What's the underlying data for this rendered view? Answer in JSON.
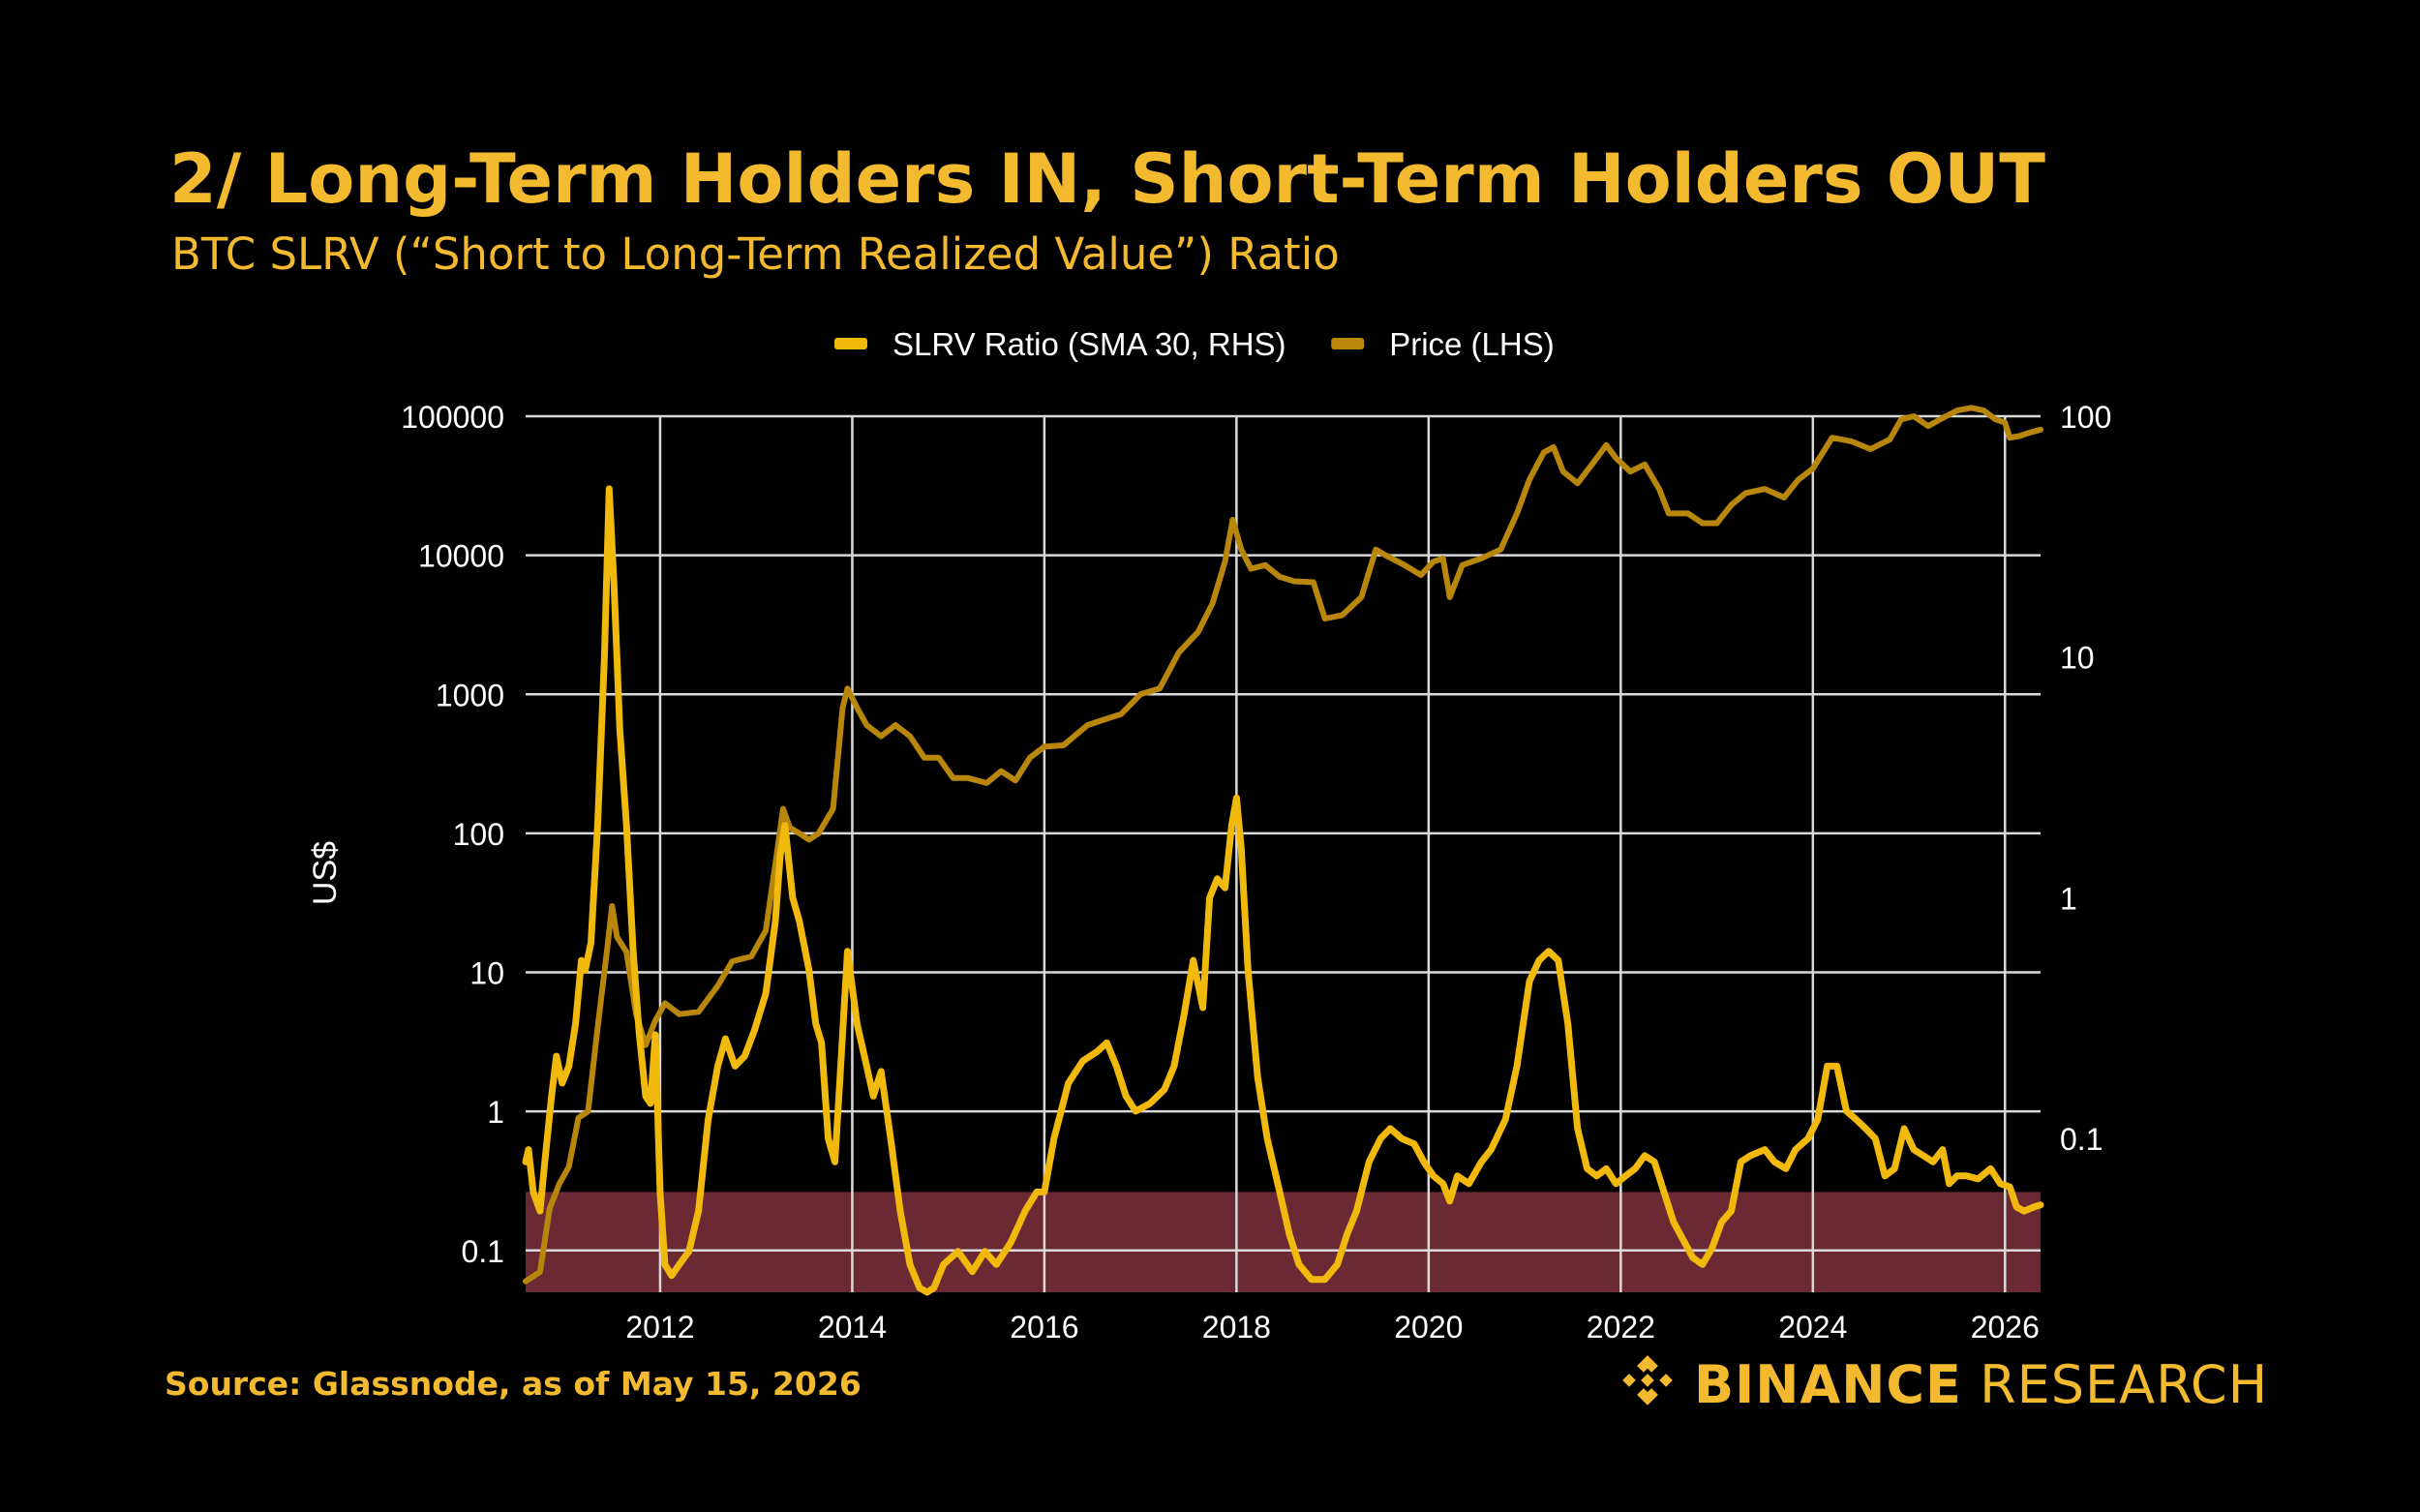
{
  "header": {
    "title": "2/ Long-Term Holders IN, Short-Term Holders OUT",
    "subtitle": "BTC SLRV (“Short to Long-Term Realized Value”) Ratio"
  },
  "footer": {
    "source": "Source: Glassnode, as of May 15, 2026",
    "brand_name": "BINANCE",
    "brand_suffix": " RESEARCH"
  },
  "colors": {
    "background": "#000000",
    "brand_yellow": "#F3BA2F",
    "slrv_line": "#F0B90B",
    "price_line": "#B8860B",
    "low_zone_fill": "#6B2A33",
    "grid": "#D9D9D9",
    "text": "#FFFFFF"
  },
  "chart_data": {
    "type": "line",
    "title": "",
    "legend_position": "top-center",
    "grid": true,
    "xlabel": "",
    "ylabel": "US$",
    "y_left_scale": "log",
    "y_right_scale": "log",
    "xlim": [
      2010.6,
      2026.37
    ],
    "ylim_left": [
      0.05,
      100000
    ],
    "ylim_right": [
      0.023,
      100
    ],
    "x_ticks": [
      2012,
      2014,
      2016,
      2018,
      2020,
      2022,
      2024,
      2026
    ],
    "x_tick_labels": [
      "2012",
      "2014",
      "2016",
      "2018",
      "2020",
      "2022",
      "2024",
      "2026"
    ],
    "y_left_ticks": [
      0.1,
      1,
      10,
      100,
      1000,
      10000,
      100000
    ],
    "y_left_tick_labels": [
      "0.1",
      "1",
      "10",
      "100",
      "1000",
      "10000",
      "100000"
    ],
    "y_right_ticks": [
      0.1,
      1,
      10,
      100
    ],
    "y_right_tick_labels": [
      "0.1",
      "1",
      "10",
      "100"
    ],
    "highlight_band": {
      "axis": "right",
      "from": 0.023,
      "to": 0.06
    },
    "series": [
      {
        "name": "SLRV Ratio (SMA 30, RHS)",
        "axis": "right",
        "color": "#F0B90B",
        "points": [
          [
            2010.6,
            0.08
          ],
          [
            2010.63,
            0.09
          ],
          [
            2010.68,
            0.06
          ],
          [
            2010.75,
            0.05
          ],
          [
            2010.8,
            0.08
          ],
          [
            2010.87,
            0.15
          ],
          [
            2010.92,
            0.22
          ],
          [
            2010.98,
            0.17
          ],
          [
            2011.05,
            0.2
          ],
          [
            2011.12,
            0.3
          ],
          [
            2011.18,
            0.55
          ],
          [
            2011.22,
            0.5
          ],
          [
            2011.28,
            0.65
          ],
          [
            2011.35,
            2.0
          ],
          [
            2011.42,
            10.0
          ],
          [
            2011.47,
            50.0
          ],
          [
            2011.52,
            20.0
          ],
          [
            2011.58,
            5.0
          ],
          [
            2011.65,
            2.0
          ],
          [
            2011.72,
            0.6
          ],
          [
            2011.78,
            0.28
          ],
          [
            2011.85,
            0.15
          ],
          [
            2011.9,
            0.14
          ],
          [
            2011.95,
            0.27
          ],
          [
            2012.0,
            0.06
          ],
          [
            2012.05,
            0.03
          ],
          [
            2012.12,
            0.027
          ],
          [
            2012.2,
            0.03
          ],
          [
            2012.3,
            0.034
          ],
          [
            2012.4,
            0.05
          ],
          [
            2012.5,
            0.12
          ],
          [
            2012.6,
            0.2
          ],
          [
            2012.68,
            0.26
          ],
          [
            2012.78,
            0.2
          ],
          [
            2012.88,
            0.22
          ],
          [
            2012.98,
            0.28
          ],
          [
            2013.1,
            0.4
          ],
          [
            2013.2,
            0.8
          ],
          [
            2013.25,
            1.5
          ],
          [
            2013.3,
            2.0
          ],
          [
            2013.38,
            1.0
          ],
          [
            2013.45,
            0.8
          ],
          [
            2013.55,
            0.5
          ],
          [
            2013.62,
            0.3
          ],
          [
            2013.68,
            0.25
          ],
          [
            2013.75,
            0.1
          ],
          [
            2013.82,
            0.08
          ],
          [
            2013.88,
            0.2
          ],
          [
            2013.95,
            0.6
          ],
          [
            2014.05,
            0.3
          ],
          [
            2014.15,
            0.2
          ],
          [
            2014.22,
            0.15
          ],
          [
            2014.3,
            0.19
          ],
          [
            2014.4,
            0.1
          ],
          [
            2014.5,
            0.05
          ],
          [
            2014.6,
            0.03
          ],
          [
            2014.7,
            0.024
          ],
          [
            2014.78,
            0.023
          ],
          [
            2014.85,
            0.024
          ],
          [
            2014.95,
            0.03
          ],
          [
            2015.1,
            0.034
          ],
          [
            2015.25,
            0.028
          ],
          [
            2015.38,
            0.034
          ],
          [
            2015.5,
            0.03
          ],
          [
            2015.65,
            0.037
          ],
          [
            2015.8,
            0.05
          ],
          [
            2015.92,
            0.06
          ],
          [
            2016.0,
            0.06
          ],
          [
            2016.1,
            0.1
          ],
          [
            2016.25,
            0.17
          ],
          [
            2016.4,
            0.21
          ],
          [
            2016.55,
            0.23
          ],
          [
            2016.65,
            0.25
          ],
          [
            2016.75,
            0.2
          ],
          [
            2016.85,
            0.15
          ],
          [
            2016.95,
            0.13
          ],
          [
            2017.1,
            0.14
          ],
          [
            2017.25,
            0.16
          ],
          [
            2017.35,
            0.2
          ],
          [
            2017.45,
            0.32
          ],
          [
            2017.55,
            0.55
          ],
          [
            2017.65,
            0.35
          ],
          [
            2017.72,
            1.0
          ],
          [
            2017.8,
            1.2
          ],
          [
            2017.88,
            1.1
          ],
          [
            2017.95,
            2.0
          ],
          [
            2018.0,
            2.6
          ],
          [
            2018.05,
            1.6
          ],
          [
            2018.12,
            0.5
          ],
          [
            2018.22,
            0.18
          ],
          [
            2018.32,
            0.1
          ],
          [
            2018.45,
            0.06
          ],
          [
            2018.55,
            0.04
          ],
          [
            2018.65,
            0.03
          ],
          [
            2018.78,
            0.026
          ],
          [
            2018.92,
            0.026
          ],
          [
            2019.05,
            0.03
          ],
          [
            2019.15,
            0.04
          ],
          [
            2019.25,
            0.05
          ],
          [
            2019.38,
            0.08
          ],
          [
            2019.5,
            0.1
          ],
          [
            2019.6,
            0.11
          ],
          [
            2019.72,
            0.1
          ],
          [
            2019.85,
            0.095
          ],
          [
            2019.95,
            0.08
          ],
          [
            2020.05,
            0.07
          ],
          [
            2020.15,
            0.065
          ],
          [
            2020.22,
            0.055
          ],
          [
            2020.3,
            0.07
          ],
          [
            2020.42,
            0.065
          ],
          [
            2020.55,
            0.08
          ],
          [
            2020.65,
            0.09
          ],
          [
            2020.8,
            0.12
          ],
          [
            2020.92,
            0.2
          ],
          [
            2021.05,
            0.45
          ],
          [
            2021.15,
            0.55
          ],
          [
            2021.25,
            0.6
          ],
          [
            2021.35,
            0.55
          ],
          [
            2021.45,
            0.3
          ],
          [
            2021.55,
            0.11
          ],
          [
            2021.65,
            0.075
          ],
          [
            2021.75,
            0.07
          ],
          [
            2021.85,
            0.075
          ],
          [
            2021.95,
            0.065
          ],
          [
            2022.05,
            0.07
          ],
          [
            2022.15,
            0.075
          ],
          [
            2022.25,
            0.085
          ],
          [
            2022.35,
            0.08
          ],
          [
            2022.45,
            0.06
          ],
          [
            2022.55,
            0.045
          ],
          [
            2022.65,
            0.038
          ],
          [
            2022.75,
            0.032
          ],
          [
            2022.85,
            0.03
          ],
          [
            2022.95,
            0.035
          ],
          [
            2023.05,
            0.045
          ],
          [
            2023.15,
            0.05
          ],
          [
            2023.25,
            0.08
          ],
          [
            2023.35,
            0.085
          ],
          [
            2023.5,
            0.09
          ],
          [
            2023.6,
            0.08
          ],
          [
            2023.72,
            0.075
          ],
          [
            2023.82,
            0.09
          ],
          [
            2023.95,
            0.1
          ],
          [
            2024.05,
            0.12
          ],
          [
            2024.15,
            0.2
          ],
          [
            2024.25,
            0.2
          ],
          [
            2024.35,
            0.13
          ],
          [
            2024.45,
            0.12
          ],
          [
            2024.55,
            0.11
          ],
          [
            2024.65,
            0.1
          ],
          [
            2024.75,
            0.07
          ],
          [
            2024.85,
            0.075
          ],
          [
            2024.95,
            0.11
          ],
          [
            2025.05,
            0.09
          ],
          [
            2025.15,
            0.085
          ],
          [
            2025.25,
            0.08
          ],
          [
            2025.35,
            0.09
          ],
          [
            2025.42,
            0.065
          ],
          [
            2025.5,
            0.07
          ],
          [
            2025.6,
            0.07
          ],
          [
            2025.72,
            0.068
          ],
          [
            2025.85,
            0.075
          ],
          [
            2025.95,
            0.065
          ],
          [
            2026.05,
            0.063
          ],
          [
            2026.12,
            0.052
          ],
          [
            2026.2,
            0.05
          ],
          [
            2026.3,
            0.052
          ],
          [
            2026.37,
            0.053
          ]
        ]
      },
      {
        "name": "Price (LHS)",
        "axis": "left",
        "color": "#B8860B",
        "points": [
          [
            2010.6,
            0.06
          ],
          [
            2010.75,
            0.07
          ],
          [
            2010.85,
            0.2
          ],
          [
            2010.95,
            0.3
          ],
          [
            2011.05,
            0.4
          ],
          [
            2011.15,
            0.9
          ],
          [
            2011.25,
            1.0
          ],
          [
            2011.35,
            4.0
          ],
          [
            2011.45,
            15.0
          ],
          [
            2011.5,
            30.0
          ],
          [
            2011.55,
            18.0
          ],
          [
            2011.65,
            14.0
          ],
          [
            2011.75,
            5.0
          ],
          [
            2011.85,
            3.0
          ],
          [
            2011.95,
            4.5
          ],
          [
            2012.05,
            6.0
          ],
          [
            2012.2,
            5.0
          ],
          [
            2012.4,
            5.2
          ],
          [
            2012.6,
            8.0
          ],
          [
            2012.75,
            12.0
          ],
          [
            2012.95,
            13.0
          ],
          [
            2013.1,
            20.0
          ],
          [
            2013.2,
            60.0
          ],
          [
            2013.28,
            150.0
          ],
          [
            2013.35,
            110.0
          ],
          [
            2013.45,
            100.0
          ],
          [
            2013.55,
            90.0
          ],
          [
            2013.65,
            100.0
          ],
          [
            2013.8,
            150.0
          ],
          [
            2013.9,
            800.0
          ],
          [
            2013.95,
            1100.0
          ],
          [
            2014.05,
            800.0
          ],
          [
            2014.15,
            600.0
          ],
          [
            2014.3,
            500.0
          ],
          [
            2014.45,
            600.0
          ],
          [
            2014.6,
            500.0
          ],
          [
            2014.75,
            350.0
          ],
          [
            2014.9,
            350.0
          ],
          [
            2015.05,
            250.0
          ],
          [
            2015.2,
            250.0
          ],
          [
            2015.4,
            230.0
          ],
          [
            2015.55,
            280.0
          ],
          [
            2015.7,
            240.0
          ],
          [
            2015.85,
            350.0
          ],
          [
            2016.0,
            420.0
          ],
          [
            2016.2,
            430.0
          ],
          [
            2016.45,
            600.0
          ],
          [
            2016.6,
            650.0
          ],
          [
            2016.8,
            720.0
          ],
          [
            2017.0,
            1000.0
          ],
          [
            2017.2,
            1100.0
          ],
          [
            2017.4,
            2000.0
          ],
          [
            2017.6,
            2800.0
          ],
          [
            2017.75,
            4500.0
          ],
          [
            2017.88,
            9000.0
          ],
          [
            2017.96,
            18000.0
          ],
          [
            2018.05,
            11000.0
          ],
          [
            2018.15,
            8000.0
          ],
          [
            2018.3,
            8500.0
          ],
          [
            2018.45,
            7000.0
          ],
          [
            2018.6,
            6500.0
          ],
          [
            2018.8,
            6400.0
          ],
          [
            2018.92,
            3500.0
          ],
          [
            2019.1,
            3700.0
          ],
          [
            2019.3,
            5000.0
          ],
          [
            2019.45,
            11000.0
          ],
          [
            2019.55,
            10000.0
          ],
          [
            2019.75,
            8500.0
          ],
          [
            2019.92,
            7200.0
          ],
          [
            2020.05,
            9000.0
          ],
          [
            2020.15,
            9500.0
          ],
          [
            2020.22,
            5000.0
          ],
          [
            2020.35,
            8500.0
          ],
          [
            2020.55,
            9500.0
          ],
          [
            2020.75,
            11000.0
          ],
          [
            2020.92,
            20000.0
          ],
          [
            2021.05,
            35000.0
          ],
          [
            2021.2,
            55000.0
          ],
          [
            2021.3,
            60000.0
          ],
          [
            2021.4,
            40000.0
          ],
          [
            2021.55,
            33000.0
          ],
          [
            2021.7,
            45000.0
          ],
          [
            2021.85,
            62000.0
          ],
          [
            2021.95,
            50000.0
          ],
          [
            2022.1,
            40000.0
          ],
          [
            2022.25,
            45000.0
          ],
          [
            2022.4,
            30000.0
          ],
          [
            2022.5,
            20000.0
          ],
          [
            2022.7,
            20000.0
          ],
          [
            2022.85,
            17000.0
          ],
          [
            2023.0,
            17000.0
          ],
          [
            2023.15,
            23000.0
          ],
          [
            2023.3,
            28000.0
          ],
          [
            2023.5,
            30000.0
          ],
          [
            2023.7,
            26000.0
          ],
          [
            2023.85,
            35000.0
          ],
          [
            2024.0,
            42000.0
          ],
          [
            2024.2,
            70000.0
          ],
          [
            2024.4,
            66000.0
          ],
          [
            2024.6,
            58000.0
          ],
          [
            2024.8,
            68000.0
          ],
          [
            2024.92,
            95000.0
          ],
          [
            2025.05,
            100000.0
          ],
          [
            2025.2,
            85000.0
          ],
          [
            2025.35,
            97000.0
          ],
          [
            2025.5,
            110000.0
          ],
          [
            2025.65,
            115000.0
          ],
          [
            2025.78,
            110000.0
          ],
          [
            2025.9,
            95000.0
          ],
          [
            2026.0,
            90000.0
          ],
          [
            2026.05,
            70000.0
          ],
          [
            2026.15,
            72000.0
          ],
          [
            2026.25,
            76000.0
          ],
          [
            2026.37,
            80000.0
          ]
        ]
      }
    ]
  }
}
